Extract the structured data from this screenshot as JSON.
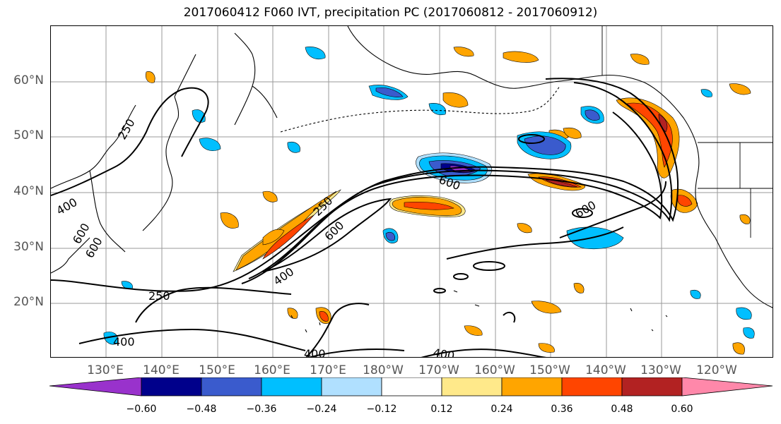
{
  "title": "2017060412 F060 IVT, precipitation PC (2017060812 - 2017060912)",
  "lat_labels": [
    "60°N",
    "50°N",
    "40°N",
    "30°N",
    "20°N"
  ],
  "lon_labels": [
    "130°E",
    "140°E",
    "150°E",
    "160°E",
    "170°E",
    "180°W",
    "170°W",
    "160°W",
    "150°W",
    "140°W",
    "130°W",
    "120°W"
  ],
  "contour_labels": [
    "250",
    "400",
    "600",
    "250",
    "400",
    "600",
    "600",
    "600",
    "250",
    "400",
    "400",
    "400",
    "600"
  ],
  "colorbar": {
    "colors": [
      "#9932cc",
      "#00008b",
      "#3a5bcd",
      "#00bfff",
      "#b0e0ff",
      "#ffffff",
      "#ffe98a",
      "#ffa500",
      "#ff4500",
      "#b22222",
      "#ff88aa"
    ],
    "tick_labels": [
      "−0.60",
      "−0.48",
      "−0.36",
      "−0.24",
      "−0.12",
      "0.12",
      "0.24",
      "0.36",
      "0.48",
      "0.60"
    ]
  },
  "palette": {
    "grid": "#999999",
    "coast": "#000000",
    "contour": "#000000"
  }
}
